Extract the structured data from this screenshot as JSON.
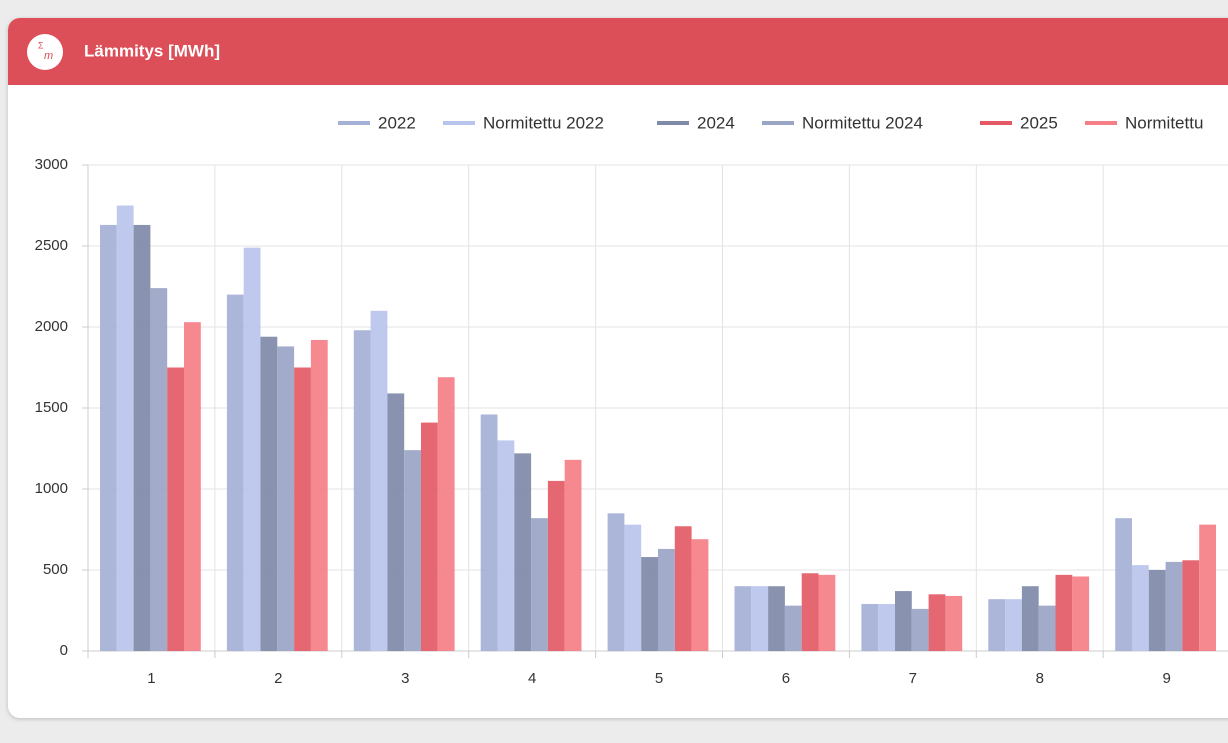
{
  "chart_data": {
    "type": "bar",
    "title": "Lämmitys [MWh]",
    "categories": [
      "1",
      "2",
      "3",
      "4",
      "5",
      "6",
      "7",
      "8",
      "9"
    ],
    "series": [
      {
        "name": "2022",
        "color": "#a5b0d6",
        "values": [
          2630,
          2200,
          1980,
          1460,
          850,
          400,
          290,
          320,
          820
        ]
      },
      {
        "name": "Normitettu 2022",
        "color": "#b9c4ec",
        "values": [
          2750,
          2490,
          2100,
          1300,
          780,
          400,
          290,
          320,
          530
        ]
      },
      {
        "name": "2024",
        "color": "#7f8aa8",
        "values": [
          2630,
          1940,
          1590,
          1220,
          580,
          400,
          370,
          400,
          500
        ]
      },
      {
        "name": "Normitettu 2024",
        "color": "#9aa5c5",
        "values": [
          2240,
          1880,
          1240,
          820,
          630,
          280,
          260,
          280,
          550
        ]
      },
      {
        "name": "2025",
        "color": "#e35a65",
        "values": [
          1750,
          1750,
          1410,
          1050,
          770,
          480,
          350,
          470,
          560
        ]
      },
      {
        "name": "Normitettu",
        "color": "#f57e87",
        "values": [
          2030,
          1920,
          1690,
          1180,
          690,
          470,
          340,
          460,
          780
        ]
      }
    ],
    "ylim": [
      0,
      3000
    ],
    "yticks": [
      0,
      500,
      1000,
      1500,
      2000,
      2500,
      3000
    ],
    "grid": true
  }
}
